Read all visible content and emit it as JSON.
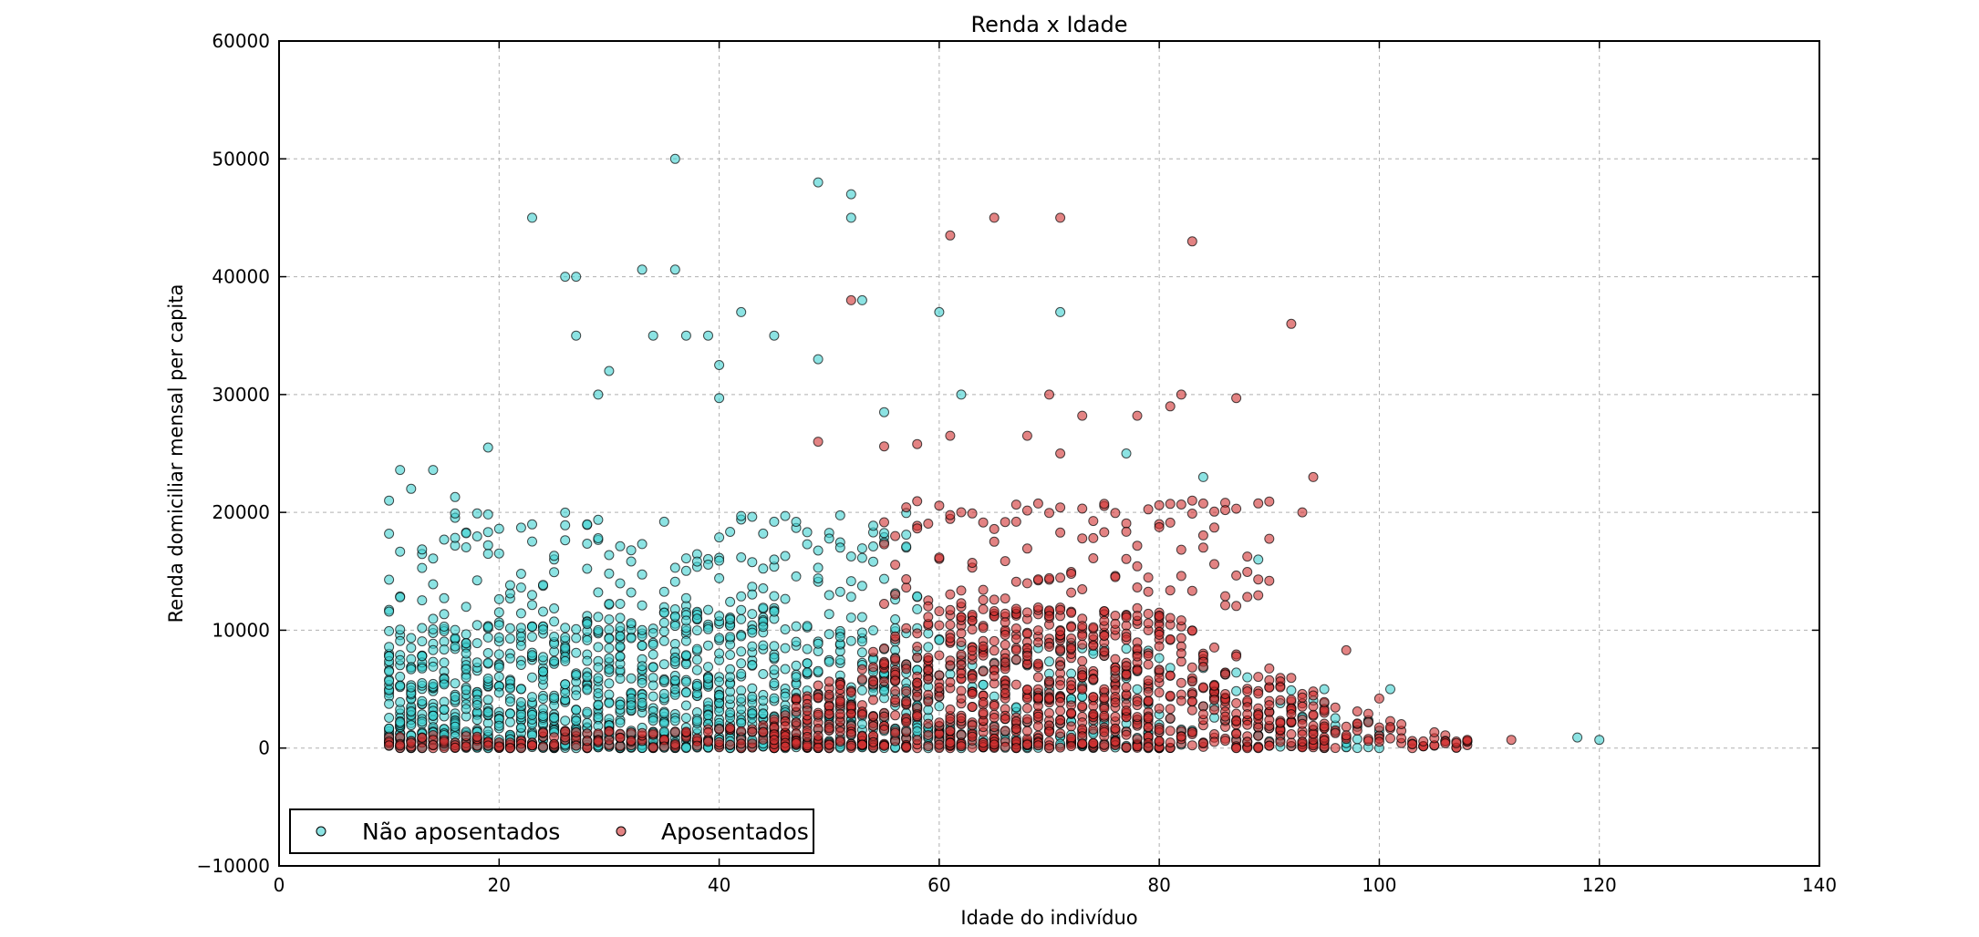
{
  "chart_data": {
    "type": "scatter",
    "title": "Renda x Idade",
    "xlabel": "Idade do indivíduo",
    "ylabel": "Renda domiciliar mensal per capita",
    "xlim": [
      0,
      140
    ],
    "ylim": [
      -10000,
      60000
    ],
    "xticks": [
      0,
      20,
      40,
      60,
      80,
      100,
      120,
      140
    ],
    "yticks": [
      -10000,
      0,
      10000,
      20000,
      30000,
      40000,
      50000,
      60000
    ],
    "grid": true,
    "legend": {
      "placement": "lower-left",
      "columns": 2
    },
    "series": [
      {
        "name": "Não aposentados",
        "color": "#40d0d0",
        "marker": "circle",
        "dense_region": {
          "x_range": [
            10,
            60
          ],
          "y_range": [
            0,
            10000
          ]
        },
        "outliers": [
          [
            10,
            21000
          ],
          [
            11,
            23600
          ],
          [
            12,
            22000
          ],
          [
            14,
            23600
          ],
          [
            16,
            21300
          ],
          [
            19,
            25500
          ],
          [
            23,
            45000
          ],
          [
            26,
            40000
          ],
          [
            27,
            40000
          ],
          [
            27,
            35000
          ],
          [
            29,
            30000
          ],
          [
            30,
            32000
          ],
          [
            33,
            40600
          ],
          [
            34,
            35000
          ],
          [
            36,
            50000
          ],
          [
            36,
            40600
          ],
          [
            37,
            35000
          ],
          [
            39,
            35000
          ],
          [
            40,
            32500
          ],
          [
            40,
            29700
          ],
          [
            42,
            37000
          ],
          [
            45,
            35000
          ],
          [
            49,
            48000
          ],
          [
            49,
            33000
          ],
          [
            52,
            47000
          ],
          [
            52,
            45000
          ],
          [
            53,
            38000
          ],
          [
            55,
            28500
          ],
          [
            60,
            37000
          ],
          [
            62,
            30000
          ],
          [
            71,
            37000
          ],
          [
            77,
            25000
          ],
          [
            84,
            23000
          ],
          [
            89,
            16000
          ],
          [
            95,
            5000
          ],
          [
            101,
            5000
          ],
          [
            118,
            900
          ],
          [
            120,
            700
          ]
        ]
      },
      {
        "name": "Aposentados",
        "color": "#d03030",
        "marker": "circle",
        "dense_region": {
          "x_range": [
            45,
            100
          ],
          "y_range": [
            0,
            10000
          ]
        },
        "outliers": [
          [
            49,
            26000
          ],
          [
            52,
            38000
          ],
          [
            55,
            25600
          ],
          [
            58,
            25800
          ],
          [
            61,
            43500
          ],
          [
            61,
            26500
          ],
          [
            65,
            45000
          ],
          [
            68,
            26500
          ],
          [
            70,
            30000
          ],
          [
            71,
            45000
          ],
          [
            71,
            25000
          ],
          [
            73,
            28200
          ],
          [
            78,
            28200
          ],
          [
            81,
            29000
          ],
          [
            82,
            30000
          ],
          [
            83,
            43000
          ],
          [
            86,
            20200
          ],
          [
            87,
            29700
          ],
          [
            92,
            36000
          ],
          [
            93,
            20000
          ],
          [
            94,
            23000
          ],
          [
            97,
            8300
          ],
          [
            100,
            4200
          ],
          [
            108,
            700
          ],
          [
            112,
            700
          ]
        ]
      }
    ]
  }
}
